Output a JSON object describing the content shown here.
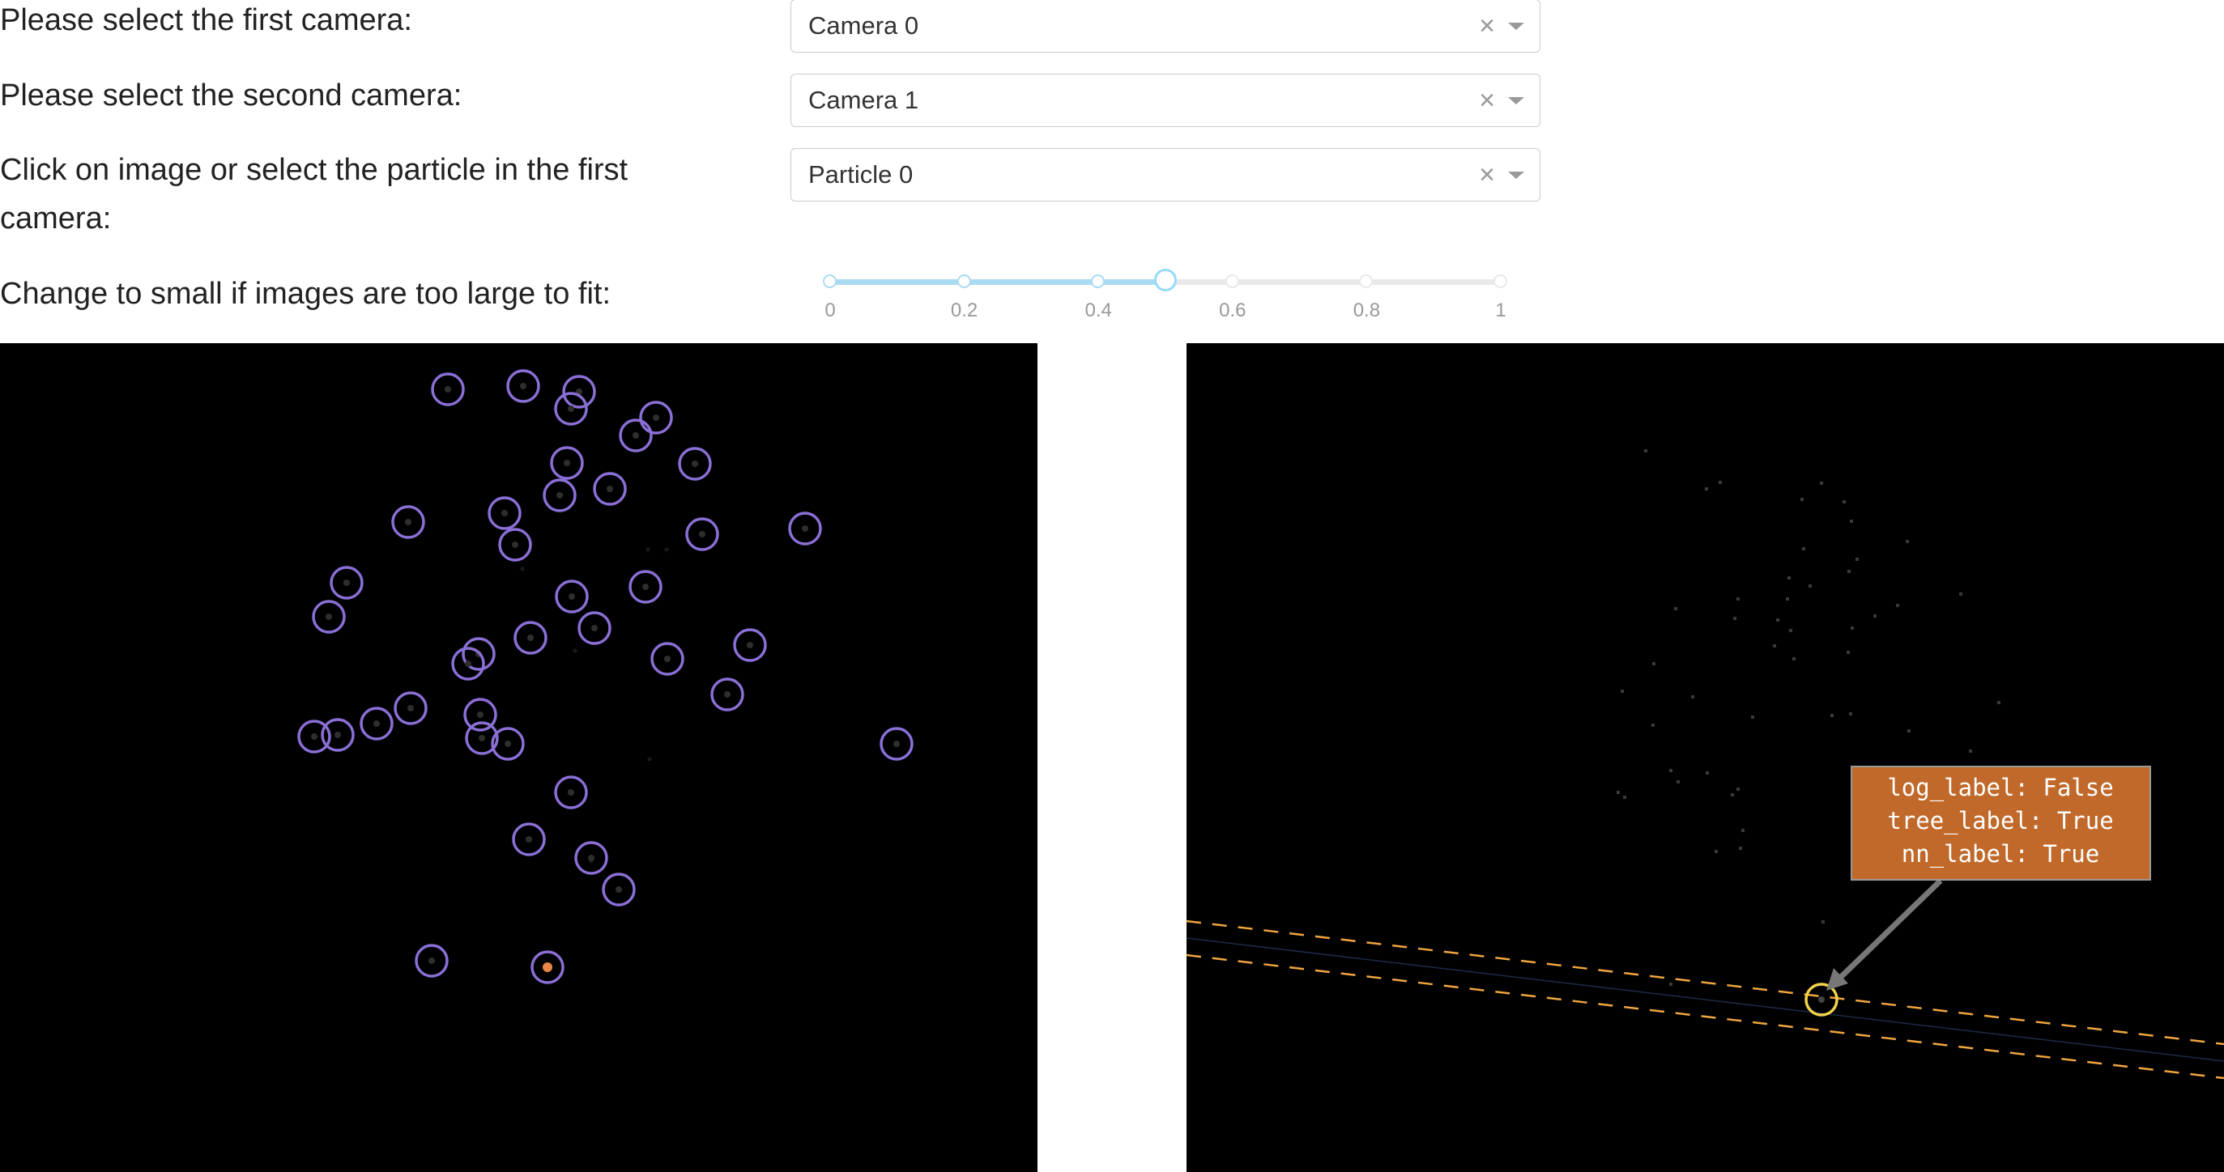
{
  "controls": {
    "first_camera": {
      "label": "Please select the first camera:",
      "value": "Camera 0"
    },
    "second_camera": {
      "label": "Please select the second camera:",
      "value": "Camera 1"
    },
    "particle": {
      "label_line1": "Click on image or select the particle in the first",
      "label_line2": "camera:",
      "value": "Particle 0"
    },
    "clear_glyph": "×",
    "size_slider": {
      "label": "Change to small if images are too large to fit:",
      "value": 0.5,
      "marks": [
        "0",
        "0.2",
        "0.4",
        "0.6",
        "0.8",
        "1"
      ]
    }
  },
  "image_left": {
    "circle_color": "#8a6fd6",
    "selected_color": "#e8854a"
  },
  "image_right": {
    "tooltip": {
      "lines": [
        "log_label: False",
        "tree_label: True",
        "nn_label: True"
      ],
      "background": "#c0692a"
    },
    "epipolar_color": "#f0a540",
    "match_color": "#f2d34a"
  }
}
